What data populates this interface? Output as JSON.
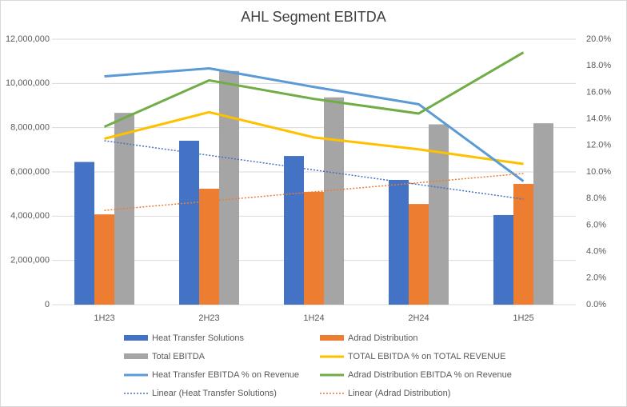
{
  "chart_data": {
    "type": "bar",
    "title": "AHL Segment EBITDA",
    "categories": [
      "1H23",
      "2H23",
      "1H24",
      "2H24",
      "1H25"
    ],
    "ylim": [
      0,
      12000000
    ],
    "yticks": [
      {
        "value": 0,
        "label": "0"
      },
      {
        "value": 2000000,
        "label": "2,000,000"
      },
      {
        "value": 4000000,
        "label": "4,000,000"
      },
      {
        "value": 6000000,
        "label": "6,000,000"
      },
      {
        "value": 8000000,
        "label": "8,000,000"
      },
      {
        "value": 10000000,
        "label": "10,000,000"
      },
      {
        "value": 12000000,
        "label": "12,000,000"
      }
    ],
    "y2lim": [
      0,
      20
    ],
    "y2ticks": [
      {
        "value": 0,
        "label": "0.0%"
      },
      {
        "value": 2,
        "label": "2.0%"
      },
      {
        "value": 4,
        "label": "4.0%"
      },
      {
        "value": 6,
        "label": "6.0%"
      },
      {
        "value": 8,
        "label": "8.0%"
      },
      {
        "value": 10,
        "label": "10.0%"
      },
      {
        "value": 12,
        "label": "12.0%"
      },
      {
        "value": 14,
        "label": "14.0%"
      },
      {
        "value": 16,
        "label": "16.0%"
      },
      {
        "value": 18,
        "label": "18.0%"
      },
      {
        "value": 20,
        "label": "20.0%"
      }
    ],
    "grid": true,
    "legend": "bottom",
    "series": [
      {
        "name": "Heat Transfer Solutions",
        "color": "#4472c4",
        "type": "bar",
        "values": [
          6450000,
          7410000,
          6720000,
          5640000,
          4050000
        ]
      },
      {
        "name": "Adrad Distribution",
        "color": "#ed7d31",
        "type": "bar",
        "values": [
          4080000,
          5240000,
          5100000,
          4550000,
          5460000
        ]
      },
      {
        "name": "Total EBITDA",
        "color": "#a5a5a5",
        "type": "bar",
        "values": [
          8670000,
          10560000,
          9370000,
          8150000,
          8200000
        ]
      },
      {
        "name": "TOTAL EBITDA % on TOTAL REVENUE",
        "color": "#ffc000",
        "type": "line",
        "axis": "y2",
        "values": [
          12.5,
          14.5,
          12.6,
          11.7,
          10.6
        ]
      },
      {
        "name": "Heat Transfer EBITDA % on Revenue",
        "color": "#5b9bd5",
        "type": "line",
        "axis": "y2",
        "values": [
          17.2,
          17.8,
          16.4,
          15.1,
          9.3
        ]
      },
      {
        "name": "Adrad Distribution EBITDA % on Revenue",
        "color": "#70ad47",
        "type": "line",
        "axis": "y2",
        "values": [
          13.4,
          16.9,
          15.5,
          14.4,
          19.0
        ]
      },
      {
        "name": "Linear (Heat Transfer Solutions)",
        "color": "#4472c4",
        "type": "line",
        "dotted": true,
        "values": [
          7410000,
          6750000,
          6090000,
          5430000,
          4770000
        ]
      },
      {
        "name": "Linear (Adrad Distribution)",
        "color": "#ed7d31",
        "type": "line",
        "dotted": true,
        "values": [
          4260000,
          4680000,
          5100000,
          5510000,
          5930000
        ]
      }
    ]
  }
}
